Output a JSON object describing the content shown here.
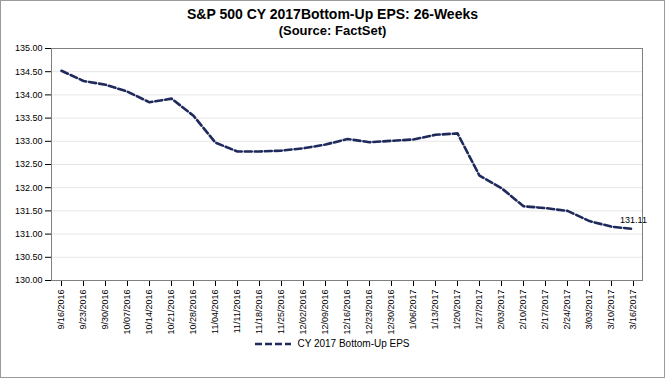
{
  "chart_data": {
    "type": "line",
    "title": "S&P 500 CY 2017Bottom-Up EPS: 26-Weeks",
    "subtitle": "(Source: FactSet)",
    "categories": [
      "9/16/2016",
      "9/23/2016",
      "9/30/2016",
      "10/07/2016",
      "10/14/2016",
      "10/21/2016",
      "10/28/2016",
      "11/04/2016",
      "11/11/2016",
      "11/18/2016",
      "11/25/2016",
      "12/02/2016",
      "12/09/2016",
      "12/16/2016",
      "12/23/2016",
      "12/30/2016",
      "1/06/2017",
      "1/13/2017",
      "1/20/2017",
      "1/27/2017",
      "2/03/2017",
      "2/10/2017",
      "2/17/2017",
      "2/24/2017",
      "3/03/2017",
      "3/10/2017",
      "3/16/2017"
    ],
    "series": [
      {
        "name": "CY 2017 Bottom-Up EPS",
        "color": "#1f2a5c",
        "line_style": "dashed",
        "values": [
          134.52,
          134.3,
          134.22,
          134.07,
          133.84,
          133.92,
          133.55,
          132.97,
          132.78,
          132.78,
          132.8,
          132.85,
          132.93,
          133.05,
          132.98,
          133.01,
          133.04,
          133.14,
          133.17,
          132.26,
          131.99,
          131.6,
          131.56,
          131.5,
          131.28,
          131.16,
          131.11
        ]
      }
    ],
    "annotations": [
      {
        "x": "3/16/2017",
        "y": 131.11,
        "text": "131.11"
      }
    ],
    "ylim": [
      130,
      135
    ],
    "yticks": [
      {
        "value": 130,
        "label": "130.00"
      },
      {
        "value": 130.5,
        "label": "130.50"
      },
      {
        "value": 131,
        "label": "131.00"
      },
      {
        "value": 131.5,
        "label": "131.50"
      },
      {
        "value": 132,
        "label": "132.00"
      },
      {
        "value": 132.5,
        "label": "132.50"
      },
      {
        "value": 133,
        "label": "133.00"
      },
      {
        "value": 133.5,
        "label": "133.50"
      },
      {
        "value": 134,
        "label": "134.00"
      },
      {
        "value": 134.5,
        "label": "134.50"
      },
      {
        "value": 135,
        "label": "135.00"
      }
    ],
    "grid": true,
    "legend": "bottom"
  }
}
